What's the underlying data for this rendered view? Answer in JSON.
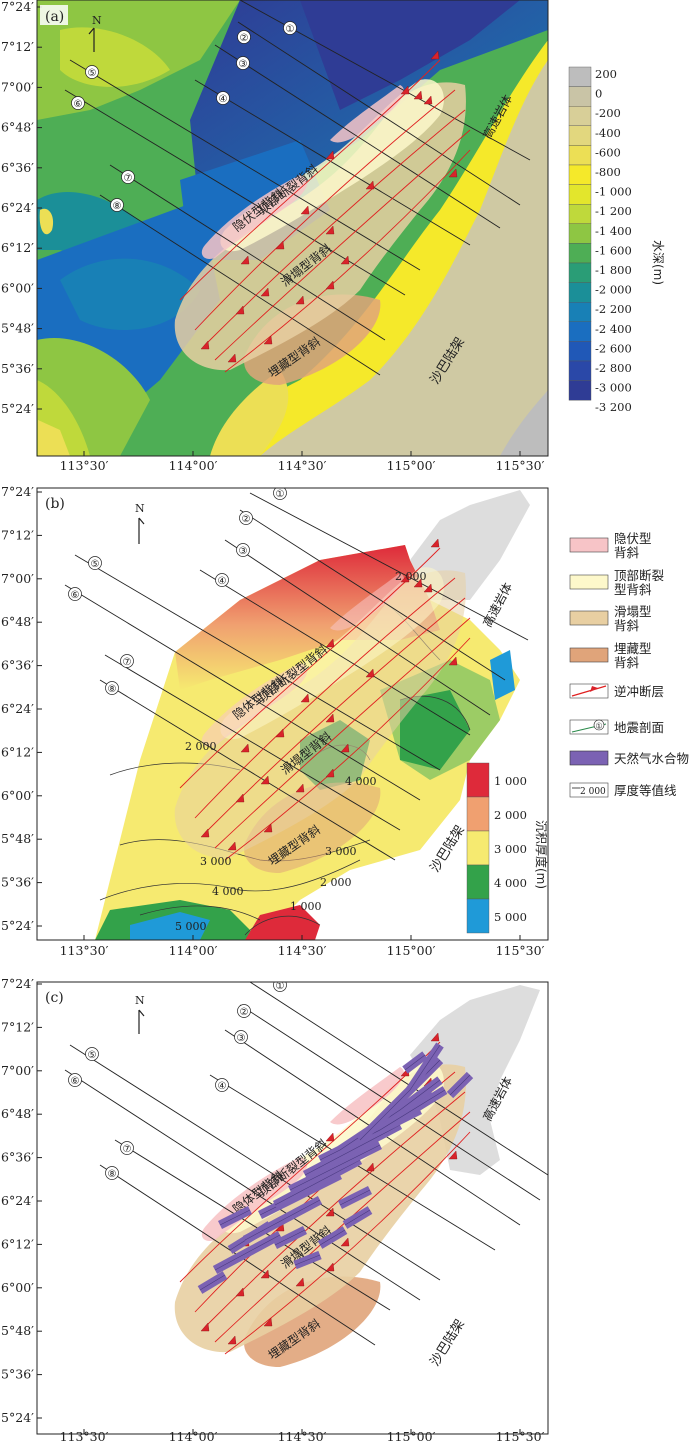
{
  "panels": [
    {
      "tag": "(a)",
      "labels": {
        "cryptic": "隐伏型背斜",
        "crestal": "顶部断裂背斜",
        "slump": "滑塌型背斜",
        "buried": "埋藏型背斜",
        "highvel": "高速岩体",
        "shelf": "沙巴陆架"
      }
    },
    {
      "tag": "(b)",
      "labels": {
        "cryptic": "隐体型背斜",
        "crestal": "顶部断裂型背斜",
        "slump": "滑塌型背斜",
        "buried": "埋藏型背斜",
        "highvel": "高速岩体",
        "shelf": "沙巴陆架"
      }
    },
    {
      "tag": "(c)",
      "labels": {
        "cryptic": "隐体型背斜",
        "crestal": "顶部断裂型背斜",
        "slump": "滑塌型背斜",
        "buried": "埋藏型背斜",
        "highvel": "高速岩体",
        "shelf": "沙巴陆架"
      }
    }
  ],
  "north": "N",
  "lat_ticks": [
    "7°24′",
    "7°12′",
    "7°00′",
    "6°48′",
    "6°36′",
    "6°24′",
    "6°12′",
    "6°00′",
    "5°48′",
    "5°36′",
    "5°24′"
  ],
  "lon_ticks": [
    "113°30′",
    "114°00′",
    "114°30′",
    "115°00′",
    "115°30′"
  ],
  "seismic_profiles": [
    "①",
    "②",
    "③",
    "④",
    "⑤",
    "⑥",
    "⑦",
    "⑧"
  ],
  "depth_legend": {
    "title": "水深(m)",
    "levels": [
      "200",
      "0",
      "-200",
      "-400",
      "-600",
      "-800",
      "-1 000",
      "-1 200",
      "-1 400",
      "-1 600",
      "-1 800",
      "-2 000",
      "-2 200",
      "-2 400",
      "-2 600",
      "-2 800",
      "-3 000",
      "-3 200"
    ],
    "colors": [
      "#bdbdbd",
      "#c9c4a6",
      "#d8cf98",
      "#e2d77e",
      "#ecdf55",
      "#f5e92a",
      "#e3e62c",
      "#bfd93b",
      "#8ec643",
      "#4eae55",
      "#2a9d76",
      "#1b8f98",
      "#1880b6",
      "#1a6ec0",
      "#2058b7",
      "#2a48a8",
      "#2f3c95"
    ]
  },
  "thickness_legend": {
    "title": "沉积厚度(m)",
    "levels": [
      "1 000",
      "2 000",
      "3 000",
      "4 000",
      "5 000"
    ],
    "colors": [
      "#de2a3a",
      "#f0a070",
      "#f6ea70",
      "#33a24a",
      "#1f9ad8"
    ]
  },
  "contour_labels": [
    "2 000",
    "3 000",
    "4 000",
    "5 000",
    "3 000",
    "2 000",
    "1 000",
    "4 000",
    "2 000"
  ],
  "legend_items": [
    {
      "label": "隐伏型\n背斜",
      "type": "cryptic",
      "color": "#f7c4c7"
    },
    {
      "label": "顶部断裂\n型背斜",
      "type": "crestal",
      "color": "#fdf8cb"
    },
    {
      "label": "滑塌型\n背斜",
      "type": "slump",
      "color": "#e8cfa2"
    },
    {
      "label": "埋藏型\n背斜",
      "type": "buried",
      "color": "#e0a47a"
    },
    {
      "label": "逆冲断层",
      "type": "fault",
      "color": "#e02020"
    },
    {
      "label": "地震剖面",
      "type": "profile",
      "color": "#222222"
    },
    {
      "label": "天然气水合物",
      "type": "hydrate",
      "color": "#7b62b3"
    },
    {
      "label": "厚度等值线",
      "type": "contour",
      "color": "#222222"
    }
  ],
  "legend_profile_num": "①",
  "legend_contour_num": "2 000"
}
